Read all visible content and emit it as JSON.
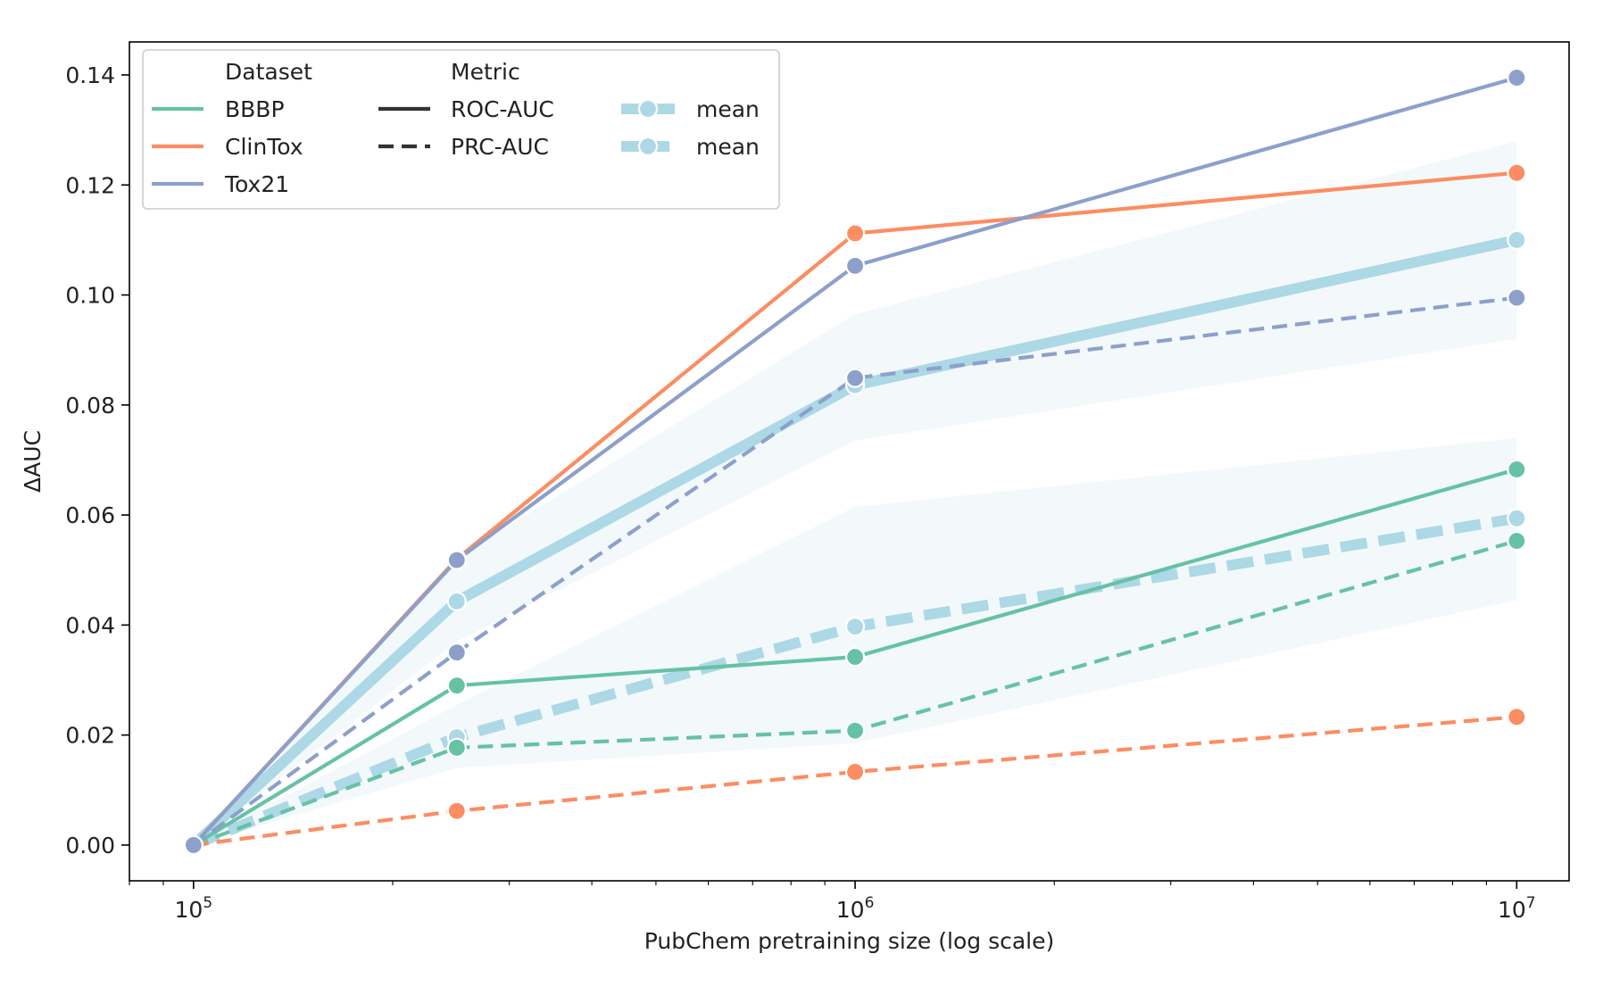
{
  "chart_data": {
    "type": "line",
    "xscale": "log",
    "x": [
      100000,
      250000,
      1000000,
      10000000
    ],
    "xlim": [
      80000,
      12000000
    ],
    "ylim": [
      -0.0065,
      0.146
    ],
    "xlabel": "PubChem pretraining size (log scale)",
    "ylabel": "ΔAUC",
    "xticks": [
      {
        "value": 100000,
        "base": "10",
        "exp": "5"
      },
      {
        "value": 1000000,
        "base": "10",
        "exp": "6"
      },
      {
        "value": 10000000,
        "base": "10",
        "exp": "7"
      }
    ],
    "yticks": [
      {
        "value": 0.0,
        "label": "0.00"
      },
      {
        "value": 0.02,
        "label": "0.02"
      },
      {
        "value": 0.04,
        "label": "0.04"
      },
      {
        "value": 0.06,
        "label": "0.06"
      },
      {
        "value": 0.08,
        "label": "0.08"
      },
      {
        "value": 0.1,
        "label": "0.10"
      },
      {
        "value": 0.12,
        "label": "0.12"
      },
      {
        "value": 0.14,
        "label": "0.14"
      }
    ],
    "series": [
      {
        "name": "BBBP",
        "metric": "ROC-AUC",
        "color": "#66c2a5",
        "values": [
          0.0,
          0.029,
          0.0342,
          0.0683
        ]
      },
      {
        "name": "BBBP",
        "metric": "PRC-AUC",
        "color": "#66c2a5",
        "values": [
          0.0,
          0.0177,
          0.0208,
          0.0553
        ]
      },
      {
        "name": "ClinTox",
        "metric": "ROC-AUC",
        "color": "#fc8d62",
        "values": [
          0.0,
          0.052,
          0.1112,
          0.1222
        ]
      },
      {
        "name": "ClinTox",
        "metric": "PRC-AUC",
        "color": "#fc8d62",
        "values": [
          0.0,
          0.0062,
          0.0133,
          0.0233
        ]
      },
      {
        "name": "Tox21",
        "metric": "ROC-AUC",
        "color": "#8da0cb",
        "values": [
          0.0,
          0.0518,
          0.1053,
          0.1395
        ]
      },
      {
        "name": "Tox21",
        "metric": "PRC-AUC",
        "color": "#8da0cb",
        "values": [
          0.0,
          0.035,
          0.0849,
          0.0995
        ]
      },
      {
        "name": "mean",
        "metric": "ROC-AUC",
        "color": "#add8e6",
        "values": [
          0.0,
          0.0443,
          0.0836,
          0.11
        ],
        "band_low": [
          0.0,
          0.037,
          0.0735,
          0.092
        ],
        "band_high": [
          0.0,
          0.0523,
          0.0965,
          0.128
        ]
      },
      {
        "name": "mean",
        "metric": "PRC-AUC",
        "color": "#add8e6",
        "values": [
          0.0,
          0.0196,
          0.0397,
          0.0594
        ],
        "band_low": [
          0.0,
          0.014,
          0.0185,
          0.0445
        ],
        "band_high": [
          0.0,
          0.0255,
          0.0615,
          0.074
        ]
      }
    ],
    "legend": {
      "position": "top-left",
      "dataset_title": "Dataset",
      "metric_title": "Metric",
      "datasets": [
        {
          "label": "BBBP",
          "color": "#66c2a5"
        },
        {
          "label": "ClinTox",
          "color": "#fc8d62"
        },
        {
          "label": "Tox21",
          "color": "#8da0cb"
        }
      ],
      "metrics": [
        {
          "label": "ROC-AUC",
          "style": "solid"
        },
        {
          "label": "PRC-AUC",
          "style": "dashed"
        }
      ],
      "means": [
        {
          "label": "mean",
          "style": "solid"
        },
        {
          "label": "mean",
          "style": "dashed"
        }
      ]
    }
  }
}
